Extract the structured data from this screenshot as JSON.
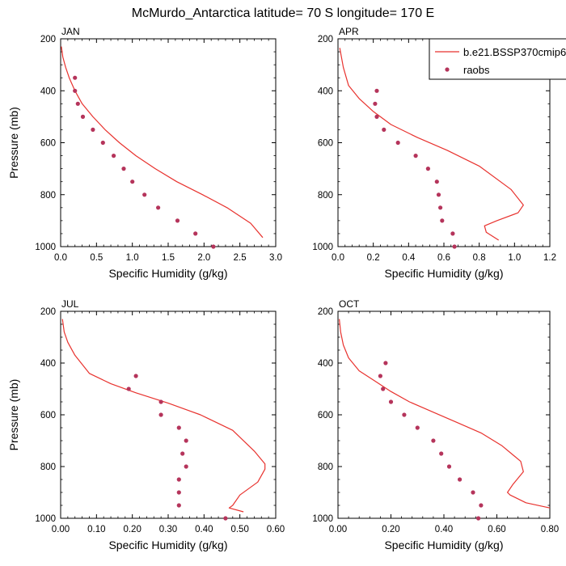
{
  "title": "McMurdo_Antarctica  latitude= 70 S longitude= 170 E",
  "colors": {
    "model": "#e8322e",
    "obs": "#b5345b",
    "axis": "#000000"
  },
  "legend": {
    "model_label": "b.e21.BSSP370cmip6",
    "obs_label": "raobs",
    "position": "top-right of APR panel"
  },
  "chart_data": [
    {
      "type": "line",
      "panel": "JAN",
      "xlabel": "Specific Humidity (g/kg)",
      "ylabel": "Pressure (mb)",
      "xlim": [
        0,
        3.0
      ],
      "xticks": [
        0,
        0.5,
        1.0,
        1.5,
        2.0,
        2.5,
        3.0
      ],
      "xtick_labels": [
        "0.0",
        "0.5",
        "1.0",
        "1.5",
        "2.0",
        "2.5",
        "3.0"
      ],
      "ylim": [
        200,
        1000
      ],
      "yticks": [
        200,
        400,
        600,
        800,
        1000
      ],
      "series": [
        {
          "name": "b.e21.BSSP370cmip6",
          "kind": "line",
          "x": [
            0.01,
            0.03,
            0.07,
            0.12,
            0.2,
            0.3,
            0.45,
            0.62,
            0.82,
            1.05,
            1.32,
            1.62,
            1.98,
            2.32,
            2.65,
            2.82
          ],
          "y": [
            230,
            270,
            310,
            350,
            400,
            450,
            500,
            550,
            600,
            650,
            700,
            750,
            800,
            850,
            910,
            965
          ]
        },
        {
          "name": "raobs",
          "kind": "scatter",
          "x": [
            0.2,
            0.2,
            0.24,
            0.31,
            0.45,
            0.59,
            0.74,
            0.88,
            1.0,
            1.17,
            1.36,
            1.63,
            1.88,
            2.13
          ],
          "y": [
            350,
            400,
            450,
            500,
            550,
            600,
            650,
            700,
            750,
            800,
            850,
            900,
            950,
            1000
          ]
        }
      ]
    },
    {
      "type": "line",
      "panel": "APR",
      "xlabel": "Specific Humidity (g/kg)",
      "ylabel": "",
      "xlim": [
        0,
        1.2
      ],
      "xticks": [
        0,
        0.2,
        0.4,
        0.6,
        0.8,
        1.0,
        1.2
      ],
      "xtick_labels": [
        "0.0",
        "0.2",
        "0.4",
        "0.6",
        "0.8",
        "1.0",
        "1.2"
      ],
      "ylim": [
        200,
        1000
      ],
      "yticks": [
        200,
        400,
        600,
        800,
        1000
      ],
      "series": [
        {
          "name": "b.e21.BSSP370cmip6",
          "kind": "line",
          "x": [
            0.01,
            0.03,
            0.06,
            0.12,
            0.2,
            0.3,
            0.45,
            0.62,
            0.8,
            0.98,
            1.05,
            1.02,
            0.9,
            0.83,
            0.84,
            0.91
          ],
          "y": [
            235,
            310,
            380,
            430,
            480,
            530,
            580,
            630,
            690,
            780,
            840,
            870,
            900,
            920,
            945,
            975
          ]
        },
        {
          "name": "raobs",
          "kind": "scatter",
          "x": [
            0.22,
            0.21,
            0.22,
            0.26,
            0.34,
            0.44,
            0.51,
            0.56,
            0.57,
            0.58,
            0.59,
            0.65,
            0.66
          ],
          "y": [
            400,
            450,
            500,
            550,
            600,
            650,
            700,
            750,
            800,
            850,
            900,
            950,
            1000
          ]
        }
      ]
    },
    {
      "type": "line",
      "panel": "JUL",
      "xlabel": "Specific Humidity (g/kg)",
      "ylabel": "Pressure (mb)",
      "xlim": [
        0,
        0.6
      ],
      "xticks": [
        0,
        0.1,
        0.2,
        0.3,
        0.4,
        0.5,
        0.6
      ],
      "xtick_labels": [
        "0.00",
        "0.10",
        "0.20",
        "0.30",
        "0.40",
        "0.50",
        "0.60"
      ],
      "ylim": [
        200,
        1000
      ],
      "yticks": [
        200,
        400,
        600,
        800,
        1000
      ],
      "series": [
        {
          "name": "b.e21.BSSP370cmip6",
          "kind": "line",
          "x": [
            0.005,
            0.01,
            0.02,
            0.04,
            0.08,
            0.14,
            0.21,
            0.3,
            0.39,
            0.48,
            0.54,
            0.57,
            0.57,
            0.55,
            0.5,
            0.48,
            0.47,
            0.51
          ],
          "y": [
            230,
            280,
            320,
            370,
            440,
            480,
            515,
            555,
            600,
            660,
            740,
            790,
            810,
            860,
            910,
            950,
            960,
            975
          ]
        },
        {
          "name": "raobs",
          "kind": "scatter",
          "x": [
            0.21,
            0.19,
            0.28,
            0.28,
            0.33,
            0.35,
            0.34,
            0.35,
            0.33,
            0.33,
            0.33,
            0.46
          ],
          "y": [
            450,
            500,
            550,
            600,
            650,
            700,
            750,
            800,
            850,
            900,
            950,
            1000
          ]
        }
      ]
    },
    {
      "type": "line",
      "panel": "OCT",
      "xlabel": "Specific Humidity (g/kg)",
      "ylabel": "",
      "xlim": [
        0,
        0.8
      ],
      "xticks": [
        0,
        0.2,
        0.4,
        0.6,
        0.8
      ],
      "xtick_labels": [
        "0.00",
        "0.20",
        "0.40",
        "0.60",
        "0.80"
      ],
      "ylim": [
        200,
        1000
      ],
      "yticks": [
        200,
        400,
        600,
        800,
        1000
      ],
      "series": [
        {
          "name": "b.e21.BSSP370cmip6",
          "kind": "line",
          "x": [
            0.005,
            0.01,
            0.02,
            0.04,
            0.08,
            0.14,
            0.2,
            0.27,
            0.36,
            0.45,
            0.54,
            0.62,
            0.69,
            0.7,
            0.66,
            0.64,
            0.65,
            0.71,
            0.8
          ],
          "y": [
            230,
            280,
            330,
            380,
            430,
            470,
            510,
            550,
            590,
            630,
            670,
            720,
            780,
            820,
            870,
            900,
            910,
            940,
            960
          ]
        },
        {
          "name": "raobs",
          "kind": "scatter",
          "x": [
            0.18,
            0.16,
            0.17,
            0.2,
            0.25,
            0.3,
            0.36,
            0.39,
            0.42,
            0.46,
            0.51,
            0.54,
            0.53
          ],
          "y": [
            400,
            450,
            500,
            550,
            600,
            650,
            700,
            750,
            800,
            850,
            900,
            950,
            1000
          ]
        }
      ]
    }
  ]
}
